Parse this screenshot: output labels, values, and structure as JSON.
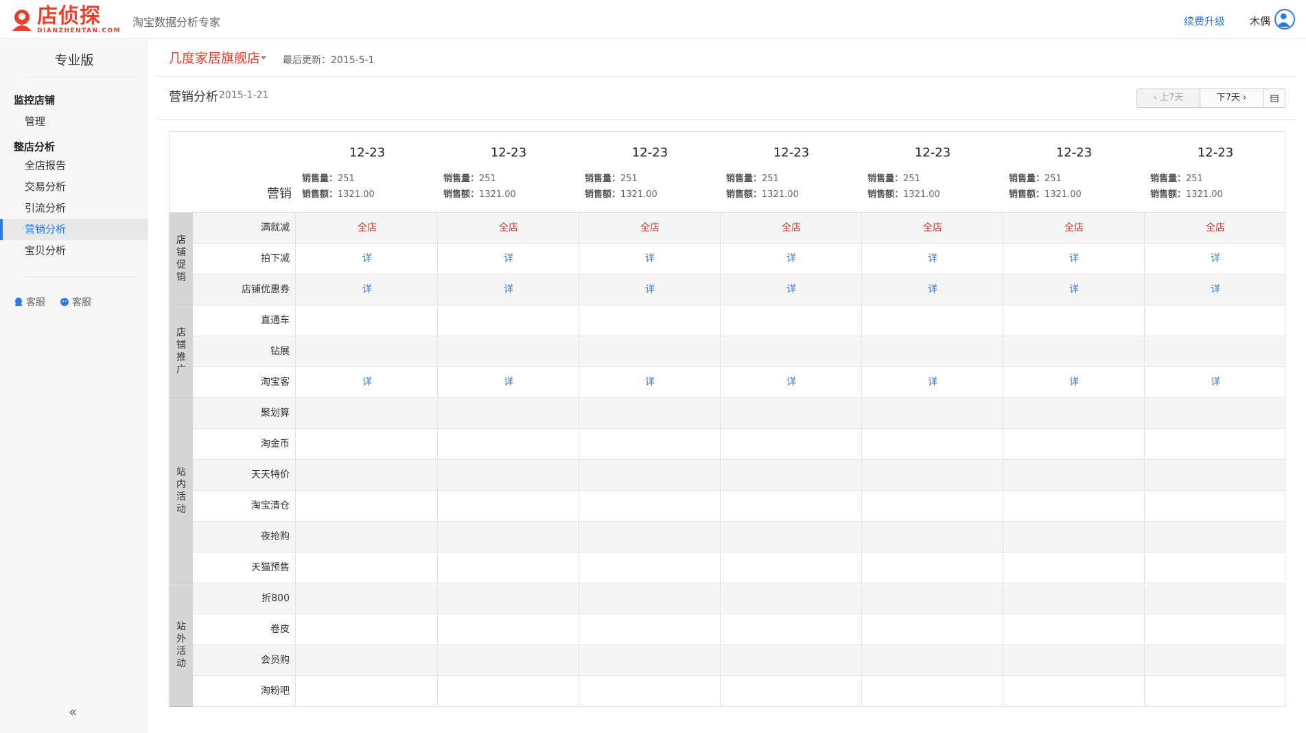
{
  "brand": {
    "name": "店侦探",
    "domain": "DIANZHENTAN.COM",
    "slogan": "淘宝数据分析专家",
    "color": "#e8402a"
  },
  "header": {
    "renew_label": "续费升级",
    "username": "木偶"
  },
  "sidebar": {
    "edition": "专业版",
    "groups": [
      {
        "title": "监控店铺",
        "items": [
          {
            "label": "管理"
          }
        ]
      },
      {
        "title": "整店分析",
        "items": [
          {
            "label": "全店报告"
          },
          {
            "label": "交易分析"
          },
          {
            "label": "引流分析"
          },
          {
            "label": "营销分析",
            "active": true
          },
          {
            "label": "宝贝分析"
          }
        ]
      }
    ],
    "service": [
      {
        "label": "客服"
      },
      {
        "label": "客服"
      }
    ],
    "collapse_icon": "«"
  },
  "main": {
    "shop_name": "几度家居旗舰店",
    "last_update": "最后更新：2015-5-1",
    "section_title": "营销分析",
    "section_date": "2015-1-21",
    "prev_label": "上7天",
    "next_label": "下7天"
  },
  "table": {
    "header_label": "营销",
    "sales_qty_label": "销售量：",
    "sales_amt_label": "销售额：",
    "days": [
      {
        "date": "12-23",
        "qty": "251",
        "amount": "1321.00"
      },
      {
        "date": "12-23",
        "qty": "251",
        "amount": "1321.00"
      },
      {
        "date": "12-23",
        "qty": "251",
        "amount": "1321.00"
      },
      {
        "date": "12-23",
        "qty": "251",
        "amount": "1321.00"
      },
      {
        "date": "12-23",
        "qty": "251",
        "amount": "1321.00"
      },
      {
        "date": "12-23",
        "qty": "251",
        "amount": "1321.00"
      },
      {
        "date": "12-23",
        "qty": "251",
        "amount": "1321.00"
      }
    ],
    "categories": [
      {
        "label": "店铺促销",
        "rows": [
          {
            "label": "满就减",
            "cell": "全店",
            "style": "red"
          },
          {
            "label": "拍下减",
            "cell": "详",
            "style": "blue"
          },
          {
            "label": "店铺优惠券",
            "cell": "详",
            "style": "blue"
          }
        ]
      },
      {
        "label": "店铺推广",
        "rows": [
          {
            "label": "直通车",
            "cell": "",
            "style": ""
          },
          {
            "label": "钻展",
            "cell": "",
            "style": ""
          },
          {
            "label": "淘宝客",
            "cell": "详",
            "style": "blue"
          }
        ]
      },
      {
        "label": "站内活动",
        "rows": [
          {
            "label": "聚划算",
            "cell": "",
            "style": ""
          },
          {
            "label": "淘金币",
            "cell": "",
            "style": ""
          },
          {
            "label": "天天特价",
            "cell": "",
            "style": ""
          },
          {
            "label": "淘宝清仓",
            "cell": "",
            "style": ""
          },
          {
            "label": "夜抢购",
            "cell": "",
            "style": ""
          },
          {
            "label": "天猫预售",
            "cell": "",
            "style": ""
          }
        ]
      },
      {
        "label": "站外活动",
        "rows": [
          {
            "label": "折800",
            "cell": "",
            "style": ""
          },
          {
            "label": "卷皮",
            "cell": "",
            "style": ""
          },
          {
            "label": "会员购",
            "cell": "",
            "style": ""
          },
          {
            "label": "淘粉吧",
            "cell": "",
            "style": ""
          }
        ]
      }
    ]
  }
}
